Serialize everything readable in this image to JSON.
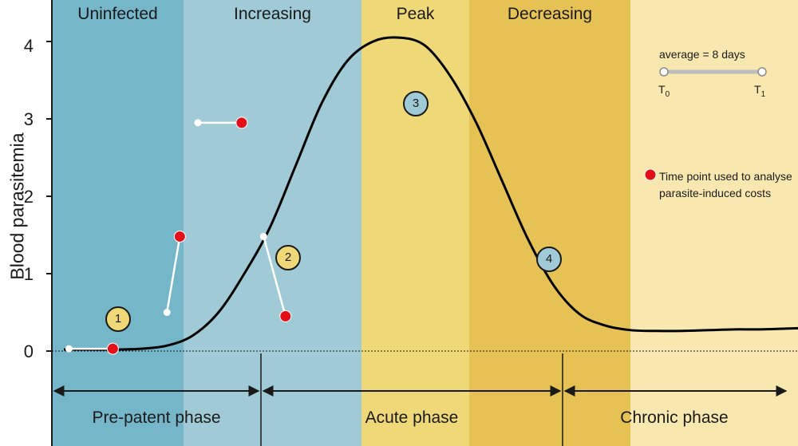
{
  "chart_data": {
    "type": "line",
    "title": "",
    "ylabel": "Blood parasitemia",
    "xlabel": "",
    "ylim": [
      -0.7,
      4.55
    ],
    "yticks": [
      "0",
      "1",
      "2",
      "3",
      "4"
    ],
    "grid": false,
    "stages": [
      {
        "label": "Uninfected",
        "color": "#75b7c9"
      },
      {
        "label": "Increasing",
        "color": "#9fcad6"
      },
      {
        "label": "Peak",
        "color": "#eed878"
      },
      {
        "label": "Decreasing",
        "color": "#e6c255"
      },
      {
        "label": "",
        "color": "#f9e7b0"
      }
    ],
    "phases": [
      "Pre-patent phase",
      "Acute phase",
      "Chronic phase"
    ],
    "series": [
      {
        "values": [
          0.02,
          0.02,
          0.02,
          0.03,
          0.07,
          0.2,
          0.5,
          1.0,
          1.6,
          2.4,
          3.2,
          3.75,
          4.0,
          4.05,
          3.95,
          3.55,
          2.95,
          2.2,
          1.45,
          0.85,
          0.48,
          0.33,
          0.27,
          0.26,
          0.26,
          0.27,
          0.28,
          0.28,
          0.29,
          0.3
        ]
      }
    ],
    "red_points": [
      [
        1.9,
        0.03
      ],
      [
        4.5,
        1.48
      ],
      [
        6.9,
        2.95
      ],
      [
        8.6,
        0.45
      ]
    ],
    "white_segments": [
      {
        "badge": "1",
        "from": [
          0.2,
          0.03
        ],
        "to": [
          1.9,
          0.03
        ]
      },
      {
        "badge": "2",
        "from": [
          4.0,
          0.5
        ],
        "to": [
          4.5,
          1.48
        ]
      },
      {
        "badge": "3",
        "from": [
          5.2,
          2.95
        ],
        "to": [
          6.9,
          2.95
        ]
      },
      {
        "badge": "4",
        "from": [
          7.75,
          1.48
        ],
        "to": [
          8.6,
          0.45
        ]
      }
    ],
    "badge_colors": {
      "1": "#eed878",
      "2": "#eed878",
      "3": "#9fcad6",
      "4": "#9fcad6"
    },
    "legend": {
      "average": "average = 8 days",
      "t0": "T",
      "t0_sub": "0",
      "t1": "T",
      "t1_sub": "1",
      "red_dot_text": "Time point used to analyse parasite-induced costs"
    }
  }
}
